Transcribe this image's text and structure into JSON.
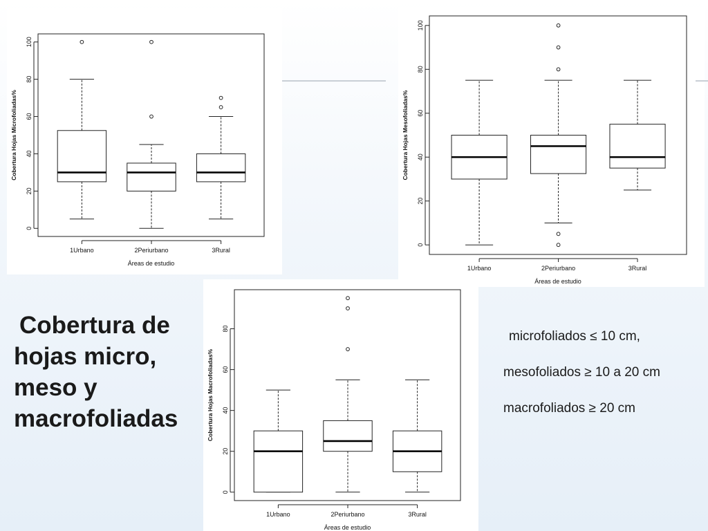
{
  "slide": {
    "title_lines": [
      "Cobertura de",
      "hojas micro,",
      "meso y",
      "macrofoliadas"
    ],
    "notes": [
      "microfoliados ≤ 10 cm,",
      "mesofoliados ≥ 10 a 20 cm",
      "macrofoliados ≥ 20 cm"
    ]
  },
  "chart_data": [
    {
      "type": "boxplot",
      "xlabel": "Áreas de estudio",
      "ylabel": "Cobertura Hojas Microfoliadas%",
      "categories": [
        "1Urbano",
        "2Periurbano",
        "3Rural"
      ],
      "yticks": [
        0,
        20,
        40,
        60,
        80,
        100
      ],
      "ylim": [
        0,
        100
      ],
      "boxes": [
        {
          "min": 5,
          "q1": 25,
          "median": 30,
          "q3": 52.5,
          "max": 80,
          "outliers": [
            100
          ]
        },
        {
          "min": 0,
          "q1": 20,
          "median": 30,
          "q3": 35,
          "max": 45,
          "outliers": [
            60,
            100
          ]
        },
        {
          "min": 5,
          "q1": 25,
          "median": 30,
          "q3": 40,
          "max": 60,
          "outliers": [
            65,
            70
          ]
        }
      ]
    },
    {
      "type": "boxplot",
      "xlabel": "Áreas de estudio",
      "ylabel": "Cobertura Hojas Mesofoliadas%",
      "categories": [
        "1Urbano",
        "2Periurbano",
        "3Rural"
      ],
      "yticks": [
        0,
        20,
        40,
        60,
        80,
        100
      ],
      "ylim": [
        0,
        100
      ],
      "boxes": [
        {
          "min": 0,
          "q1": 30,
          "median": 40,
          "q3": 50,
          "max": 75,
          "outliers": []
        },
        {
          "min": 10,
          "q1": 32.5,
          "median": 45,
          "q3": 50,
          "max": 75,
          "outliers": [
            0,
            5,
            80,
            90,
            100
          ]
        },
        {
          "min": 25,
          "q1": 35,
          "median": 40,
          "q3": 55,
          "max": 75,
          "outliers": []
        }
      ]
    },
    {
      "type": "boxplot",
      "xlabel": "Áreas de estudio",
      "ylabel": "Cobertura Hojas Macrofoliadas%",
      "categories": [
        "1Urbano",
        "2Periurbano",
        "3Rural"
      ],
      "yticks": [
        0,
        20,
        40,
        60,
        80
      ],
      "ylim": [
        0,
        95
      ],
      "boxes": [
        {
          "min": 0,
          "q1": 0,
          "median": 20,
          "q3": 30,
          "max": 50,
          "outliers": []
        },
        {
          "min": 0,
          "q1": 20,
          "median": 25,
          "q3": 35,
          "max": 55,
          "outliers": [
            70,
            90,
            95
          ]
        },
        {
          "min": 0,
          "q1": 10,
          "median": 20,
          "q3": 30,
          "max": 55,
          "outliers": []
        }
      ]
    }
  ]
}
